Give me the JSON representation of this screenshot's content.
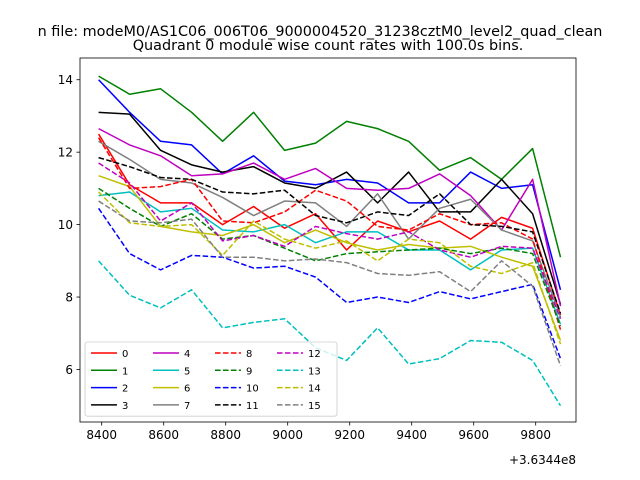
{
  "chart_data": {
    "type": "line",
    "suptitle": "n file: modeM0/AS1C06_006T06_9000004520_31238cztM0_level2_quad_clean",
    "title": "Quadrant 0 module wise count rates with 100.0s bins.",
    "xlabel": "",
    "ylabel": "",
    "x_offset_label": "+3.6344e8",
    "xlim": [
      8330,
      9930
    ],
    "ylim": [
      4.55,
      14.6
    ],
    "x_ticks": [
      8400,
      8600,
      8800,
      9000,
      9200,
      9400,
      9600,
      9800
    ],
    "y_ticks": [
      6,
      8,
      10,
      12,
      14
    ],
    "x": [
      8390,
      8490,
      8590,
      8690,
      8790,
      8890,
      8990,
      9090,
      9190,
      9290,
      9390,
      9490,
      9590,
      9690,
      9790,
      9880
    ],
    "series": [
      {
        "name": "0",
        "color": "#ff0000",
        "style": "solid",
        "values": [
          12.5,
          11.1,
          10.6,
          10.6,
          10.0,
          10.5,
          9.9,
          10.3,
          9.3,
          10.1,
          9.8,
          10.1,
          9.6,
          10.2,
          9.9,
          7.5
        ]
      },
      {
        "name": "1",
        "color": "#008000",
        "style": "solid",
        "values": [
          14.1,
          13.6,
          13.75,
          13.1,
          12.3,
          13.1,
          12.05,
          12.25,
          12.85,
          12.65,
          12.3,
          11.5,
          11.85,
          11.25,
          12.1,
          9.1
        ]
      },
      {
        "name": "2",
        "color": "#0000ff",
        "style": "solid",
        "values": [
          14.0,
          13.1,
          12.3,
          12.2,
          11.4,
          11.9,
          11.2,
          11.1,
          11.25,
          11.15,
          10.6,
          10.6,
          11.45,
          11.0,
          11.1,
          8.2
        ]
      },
      {
        "name": "3",
        "color": "#000000",
        "style": "solid",
        "values": [
          13.1,
          13.05,
          12.05,
          11.65,
          11.45,
          11.6,
          11.15,
          11.0,
          11.45,
          10.6,
          11.45,
          10.35,
          10.35,
          11.25,
          10.3,
          7.8
        ]
      },
      {
        "name": "4",
        "color": "#bf00bf",
        "style": "solid",
        "values": [
          12.65,
          12.2,
          11.9,
          11.35,
          11.4,
          11.7,
          11.25,
          11.55,
          11.0,
          10.95,
          11.0,
          11.4,
          10.8,
          9.85,
          11.25,
          7.75
        ]
      },
      {
        "name": "5",
        "color": "#00bfbf",
        "style": "solid",
        "values": [
          10.8,
          10.9,
          10.35,
          10.45,
          9.85,
          9.8,
          10.0,
          9.5,
          9.8,
          9.8,
          9.3,
          9.3,
          8.75,
          9.3,
          9.35,
          7.25
        ]
      },
      {
        "name": "6",
        "color": "#bfbf00",
        "style": "solid",
        "values": [
          11.35,
          11.05,
          9.95,
          9.8,
          9.7,
          10.0,
          9.5,
          9.85,
          9.5,
          9.3,
          9.45,
          9.35,
          9.4,
          9.1,
          8.85,
          6.8
        ]
      },
      {
        "name": "7",
        "color": "#808080",
        "style": "solid",
        "values": [
          12.3,
          11.8,
          11.25,
          11.15,
          10.75,
          10.25,
          10.65,
          10.6,
          9.95,
          10.85,
          9.6,
          10.45,
          10.7,
          9.85,
          9.55,
          7.45
        ]
      },
      {
        "name": "8",
        "color": "#ff0000",
        "style": "dashed",
        "values": [
          12.4,
          11.0,
          11.05,
          11.25,
          10.1,
          10.05,
          10.35,
          10.95,
          10.65,
          9.95,
          9.85,
          10.3,
          10.0,
          10.05,
          9.6,
          7.1
        ]
      },
      {
        "name": "9",
        "color": "#008000",
        "style": "dashed",
        "values": [
          11.0,
          10.45,
          9.95,
          10.3,
          9.6,
          9.7,
          9.35,
          9.0,
          9.2,
          9.25,
          9.3,
          9.35,
          9.2,
          9.35,
          9.2,
          7.2
        ]
      },
      {
        "name": "10",
        "color": "#0000ff",
        "style": "dashed",
        "values": [
          10.45,
          9.2,
          8.75,
          9.15,
          9.1,
          8.8,
          8.85,
          8.55,
          7.85,
          8.0,
          7.85,
          8.15,
          7.95,
          8.15,
          8.35,
          6.3
        ]
      },
      {
        "name": "11",
        "color": "#000000",
        "style": "dashed",
        "values": [
          11.85,
          11.6,
          11.3,
          11.25,
          10.9,
          10.85,
          10.95,
          10.25,
          10.05,
          10.35,
          10.25,
          10.85,
          10.0,
          9.95,
          9.8,
          7.55
        ]
      },
      {
        "name": "12",
        "color": "#bf00bf",
        "style": "dashed",
        "values": [
          11.7,
          11.15,
          10.1,
          10.6,
          9.55,
          9.7,
          9.4,
          9.95,
          9.75,
          9.6,
          9.8,
          9.3,
          9.1,
          9.4,
          9.35,
          7.4
        ]
      },
      {
        "name": "13",
        "color": "#00bfbf",
        "style": "dashed",
        "values": [
          9.0,
          8.05,
          7.7,
          8.2,
          7.15,
          7.3,
          7.4,
          6.6,
          6.25,
          7.15,
          6.15,
          6.3,
          6.8,
          6.75,
          6.25,
          5.0
        ]
      },
      {
        "name": "14",
        "color": "#bfbf00",
        "style": "dashed",
        "values": [
          10.9,
          10.05,
          9.95,
          10.0,
          9.15,
          10.1,
          9.6,
          9.35,
          9.55,
          9.0,
          9.6,
          9.5,
          8.85,
          8.65,
          8.95,
          6.7
        ]
      },
      {
        "name": "15",
        "color": "#808080",
        "style": "dashed",
        "values": [
          10.65,
          10.1,
          10.05,
          10.15,
          9.1,
          9.1,
          9.0,
          9.05,
          8.95,
          8.65,
          8.6,
          8.7,
          8.15,
          9.0,
          8.3,
          6.1
        ]
      }
    ],
    "legend_position": "lower-left",
    "legend_columns": 4,
    "grid": false
  }
}
